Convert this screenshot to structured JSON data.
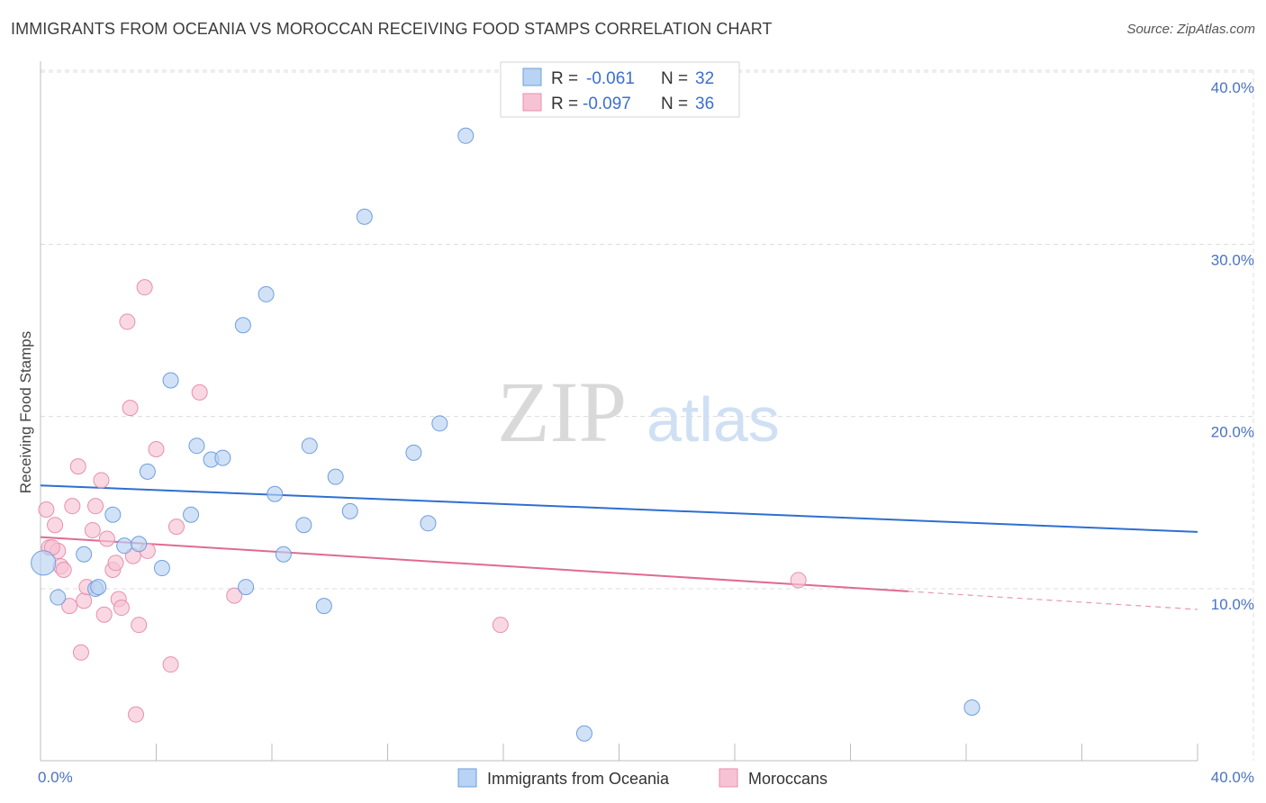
{
  "title": "IMMIGRANTS FROM OCEANIA VS MOROCCAN RECEIVING FOOD STAMPS CORRELATION CHART",
  "source": "Source: ZipAtlas.com",
  "watermark": {
    "zip": "ZIP",
    "atlas": "atlas"
  },
  "legend": {
    "rows": [
      {
        "r_label": "R =",
        "r_value": "-0.061",
        "n_label": "N =",
        "n_value": "32"
      },
      {
        "r_label": "R =",
        "r_value": "-0.097",
        "n_label": "N =",
        "n_value": "36"
      }
    ]
  },
  "colors": {
    "blue_fill": "#b8d3f3",
    "blue_stroke": "#6e9fdd",
    "blue_line": "#2e6fd0",
    "pink_fill": "#f7c3d4",
    "pink_stroke": "#e78fad",
    "pink_line": "#e06a92",
    "grid": "#dcdcdc",
    "tick_text": "#4a72c4"
  },
  "chart_data": {
    "type": "scatter",
    "title": "IMMIGRANTS FROM OCEANIA VS MOROCCAN RECEIVING FOOD STAMPS CORRELATION CHART",
    "xlabel": "",
    "ylabel": "Receiving Food Stamps",
    "xlim": [
      0,
      40
    ],
    "ylim": [
      0,
      41
    ],
    "x_tick_labels": [
      "0.0%",
      "40.0%"
    ],
    "y_ticks": [
      10,
      20,
      30,
      40
    ],
    "y_tick_labels": [
      "10.0%",
      "20.0%",
      "30.0%",
      "40.0%"
    ],
    "series": [
      {
        "name": "Immigrants from Oceania",
        "color": "#6e9fdd",
        "trend": {
          "x0": 0,
          "y0": 16.0,
          "x1": 40,
          "y1": 13.3,
          "dash_from": 40
        },
        "points": [
          [
            0.1,
            11.5,
            1.6
          ],
          [
            0.6,
            9.5,
            1
          ],
          [
            1.5,
            12.0,
            1
          ],
          [
            1.9,
            10.0,
            1
          ],
          [
            2.0,
            10.1,
            1
          ],
          [
            2.5,
            14.3,
            1
          ],
          [
            2.9,
            12.5,
            1
          ],
          [
            3.4,
            12.6,
            1
          ],
          [
            3.7,
            16.8,
            1
          ],
          [
            4.2,
            11.2,
            1
          ],
          [
            4.5,
            22.1,
            1
          ],
          [
            5.2,
            14.3,
            1
          ],
          [
            5.4,
            18.3,
            1
          ],
          [
            5.9,
            17.5,
            1
          ],
          [
            6.3,
            17.6,
            1
          ],
          [
            7.0,
            25.3,
            1
          ],
          [
            7.1,
            10.1,
            1
          ],
          [
            7.8,
            27.1,
            1
          ],
          [
            8.1,
            15.5,
            1
          ],
          [
            8.4,
            12.0,
            1
          ],
          [
            9.1,
            13.7,
            1
          ],
          [
            9.3,
            18.3,
            1
          ],
          [
            9.8,
            9.0,
            1
          ],
          [
            10.2,
            16.5,
            1
          ],
          [
            10.7,
            14.5,
            1
          ],
          [
            11.2,
            31.6,
            1
          ],
          [
            12.9,
            17.9,
            1
          ],
          [
            13.4,
            13.8,
            1
          ],
          [
            13.8,
            19.6,
            1
          ],
          [
            14.7,
            36.3,
            1
          ],
          [
            18.8,
            1.6,
            1
          ],
          [
            32.2,
            3.1,
            1
          ]
        ]
      },
      {
        "name": "Moroccans",
        "color": "#e78fad",
        "trend": {
          "x0": 0,
          "y0": 13.0,
          "x1": 40,
          "y1": 8.8,
          "dash_from": 30
        },
        "points": [
          [
            0.2,
            14.6,
            1
          ],
          [
            0.3,
            12.4,
            1
          ],
          [
            0.5,
            13.7,
            1
          ],
          [
            0.6,
            12.2,
            1
          ],
          [
            0.7,
            11.3,
            1
          ],
          [
            0.8,
            11.1,
            1
          ],
          [
            1.0,
            9.0,
            1
          ],
          [
            1.1,
            14.8,
            1
          ],
          [
            1.3,
            17.1,
            1
          ],
          [
            1.4,
            6.3,
            1
          ],
          [
            1.5,
            9.3,
            1
          ],
          [
            1.6,
            10.1,
            1
          ],
          [
            1.8,
            13.4,
            1
          ],
          [
            1.9,
            14.8,
            1
          ],
          [
            2.1,
            16.3,
            1
          ],
          [
            2.2,
            8.5,
            1
          ],
          [
            2.3,
            12.9,
            1
          ],
          [
            2.5,
            11.1,
            1
          ],
          [
            2.6,
            11.5,
            1
          ],
          [
            2.7,
            9.4,
            1
          ],
          [
            2.8,
            8.9,
            1
          ],
          [
            3.0,
            25.5,
            1
          ],
          [
            3.1,
            20.5,
            1
          ],
          [
            3.2,
            11.9,
            1
          ],
          [
            3.3,
            2.7,
            1
          ],
          [
            3.4,
            7.9,
            1
          ],
          [
            3.7,
            12.2,
            1
          ],
          [
            3.6,
            27.5,
            1
          ],
          [
            4.0,
            18.1,
            1
          ],
          [
            4.5,
            5.6,
            1
          ],
          [
            4.7,
            13.6,
            1
          ],
          [
            5.5,
            21.4,
            1
          ],
          [
            6.7,
            9.6,
            1
          ],
          [
            15.9,
            7.9,
            1
          ],
          [
            26.2,
            10.5,
            1
          ],
          [
            0.4,
            12.4,
            1
          ]
        ]
      }
    ]
  },
  "bottom_legend": {
    "items": [
      "Immigrants from Oceania",
      "Moroccans"
    ]
  }
}
